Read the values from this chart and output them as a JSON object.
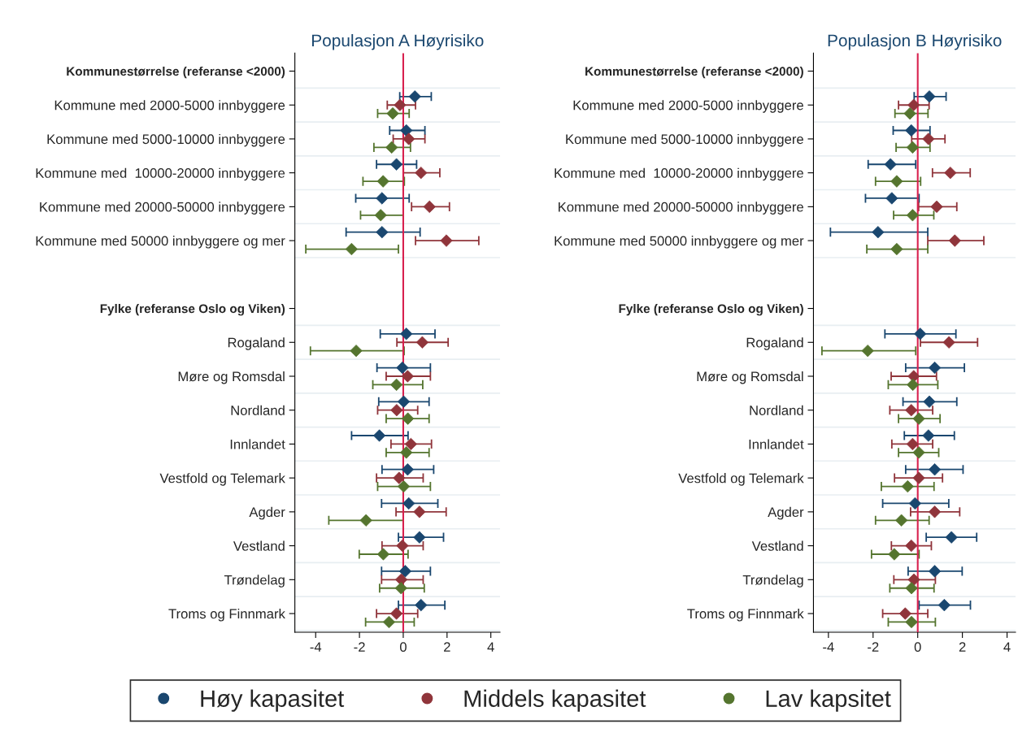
{
  "chart_data": [
    {
      "type": "scatter",
      "orientation": "horizontal",
      "title": "Populasjon A Høyrisiko",
      "marker": "diamond",
      "grid": "y",
      "legend": "bottom",
      "categories": [
        "Kommunestørrelse (referanse <2000)",
        "Kommune med 2000-5000 innbyggere",
        "Kommune med 5000-10000 innbyggere",
        "Kommune med  10000-20000 innbyggere",
        "Kommune med 20000-50000 innbyggere",
        "Kommune med 50000 innbyggere og mer",
        null,
        "Fylke (referanse Oslo og Viken)",
        "Rogaland",
        "Møre og Romsdal",
        "Nordland",
        "Innlandet",
        "Vestfold og Telemark",
        "Agder",
        "Vestland",
        "Trøndelag",
        "Troms og Finnmark"
      ],
      "series": [
        {
          "name": "Høy kapasitet",
          "color": "#1a476f",
          "values": [
            null,
            0.53,
            0.14,
            -0.31,
            -0.97,
            -0.97,
            null,
            null,
            0.14,
            -0.04,
            0.02,
            -1.09,
            0.2,
            0.25,
            0.74,
            0.09,
            0.81
          ],
          "errors": [
            null,
            [
              -0.16,
              1.28
            ],
            [
              -0.62,
              0.99
            ],
            [
              -1.22,
              0.61
            ],
            [
              -2.17,
              0.27
            ],
            [
              -2.61,
              0.77
            ],
            null,
            null,
            [
              -1.05,
              1.45
            ],
            [
              -1.2,
              1.24
            ],
            [
              -1.12,
              1.18
            ],
            [
              -2.36,
              0.22
            ],
            [
              -0.97,
              1.39
            ],
            [
              -0.99,
              1.58
            ],
            [
              -0.22,
              1.84
            ],
            [
              -0.99,
              1.24
            ],
            [
              -0.22,
              1.9
            ]
          ]
        },
        {
          "name": "Middels kapasitet",
          "color": "#90353b",
          "values": [
            null,
            -0.15,
            0.25,
            0.81,
            1.2,
            1.97,
            null,
            null,
            0.87,
            0.2,
            -0.3,
            0.35,
            -0.19,
            0.74,
            -0.04,
            -0.09,
            -0.31
          ],
          "errors": [
            null,
            [
              -0.73,
              0.56
            ],
            [
              -0.46,
              0.99
            ],
            [
              0.01,
              1.67
            ],
            [
              0.38,
              2.11
            ],
            [
              0.56,
              3.45
            ],
            null,
            null,
            [
              -0.29,
              2.05
            ],
            [
              -0.78,
              1.24
            ],
            [
              -1.17,
              0.66
            ],
            [
              -0.56,
              1.29
            ],
            [
              -1.22,
              0.91
            ],
            [
              -0.33,
              1.96
            ],
            [
              -0.97,
              0.91
            ],
            [
              -0.99,
              0.91
            ],
            [
              -1.22,
              0.66
            ]
          ]
        },
        {
          "name": "Lav kapsitet",
          "color": "#55752f",
          "values": [
            null,
            -0.48,
            -0.53,
            -0.92,
            -1.03,
            -2.36,
            null,
            null,
            -2.15,
            -0.31,
            0.21,
            0.14,
            0.02,
            -1.7,
            -0.91,
            -0.1,
            -0.65
          ],
          "errors": [
            null,
            [
              -1.17,
              0.27
            ],
            [
              -1.34,
              0.33
            ],
            [
              -1.84,
              0.05
            ],
            [
              -1.95,
              0.0
            ],
            [
              -4.45,
              -0.22
            ],
            null,
            null,
            [
              -4.24,
              0.04
            ],
            [
              -1.39,
              0.89
            ],
            [
              -0.78,
              1.18
            ],
            [
              -0.78,
              1.18
            ],
            [
              -1.17,
              1.24
            ],
            [
              -3.4,
              0.0
            ],
            [
              -2.01,
              0.22
            ],
            [
              -1.08,
              0.96
            ],
            [
              -1.72,
              0.5
            ]
          ]
        }
      ],
      "xlim": [
        -4.95,
        4.42
      ],
      "xticks": [
        -4,
        -2,
        0,
        2,
        4
      ],
      "ref_lines": [
        {
          "axis": "x",
          "value": 0,
          "color": "#d8204e"
        }
      ]
    },
    {
      "type": "scatter",
      "orientation": "horizontal",
      "title": "Populasjon B Høyrisiko",
      "marker": "diamond",
      "grid": "y",
      "legend": "bottom",
      "categories": [
        "Kommunestørrelse (referanse <2000)",
        "Kommune med 2000-5000 innbyggere",
        "Kommune med 5000-10000 innbyggere",
        "Kommune med  10000-20000 innbyggere",
        "Kommune med 20000-50000 innbyggere",
        "Kommune med 50000 innbyggere og mer",
        null,
        "Fylke (referanse Oslo og Viken)",
        "Rogaland",
        "Møre og Romsdal",
        "Nordland",
        "Innlandet",
        "Vestfold og Telemark",
        "Agder",
        "Vestland",
        "Trøndelag",
        "Troms og Finnmark"
      ],
      "series": [
        {
          "name": "Høy kapasitet",
          "color": "#1a476f",
          "values": [
            null,
            0.52,
            -0.29,
            -1.22,
            -1.16,
            -1.78,
            null,
            null,
            0.11,
            0.76,
            0.52,
            0.48,
            0.76,
            -0.12,
            1.51,
            0.76,
            1.19
          ],
          "errors": [
            null,
            [
              -0.16,
              1.27
            ],
            [
              -1.1,
              0.55
            ],
            [
              -2.22,
              -0.09
            ],
            [
              -2.34,
              0.06
            ],
            [
              -3.91,
              0.45
            ],
            null,
            null,
            [
              -1.47,
              1.71
            ],
            [
              -0.54,
              2.09
            ],
            [
              -0.66,
              1.75
            ],
            [
              -0.6,
              1.64
            ],
            [
              -0.54,
              2.03
            ],
            [
              -1.57,
              1.39
            ],
            [
              0.38,
              2.64
            ],
            [
              -0.43,
              1.99
            ],
            [
              0.06,
              2.36
            ]
          ]
        },
        {
          "name": "Middels kapasitet",
          "color": "#90353b",
          "values": [
            null,
            -0.18,
            0.48,
            1.46,
            0.85,
            1.66,
            null,
            null,
            1.4,
            -0.18,
            -0.29,
            -0.23,
            0.05,
            0.76,
            -0.29,
            -0.17,
            -0.56
          ],
          "errors": [
            null,
            [
              -0.86,
              0.51
            ],
            [
              -0.27,
              1.22
            ],
            [
              0.66,
              2.35
            ],
            [
              0.04,
              1.75
            ],
            [
              0.45,
              2.96
            ],
            null,
            null,
            [
              0.12,
              2.68
            ],
            [
              -1.19,
              0.84
            ],
            [
              -1.25,
              0.67
            ],
            [
              -1.16,
              0.67
            ],
            [
              -1.04,
              1.11
            ],
            [
              -0.32,
              1.88
            ],
            [
              -1.18,
              0.61
            ],
            [
              -1.07,
              0.79
            ],
            [
              -1.57,
              0.45
            ]
          ]
        },
        {
          "name": "Lav kapsitet",
          "color": "#55752f",
          "values": [
            null,
            -0.35,
            -0.23,
            -0.94,
            -0.23,
            -0.94,
            null,
            null,
            -2.24,
            -0.22,
            0.05,
            0.05,
            -0.45,
            -0.73,
            -1.05,
            -0.28,
            -0.28
          ],
          "errors": [
            null,
            [
              -1.02,
              0.46
            ],
            [
              -0.97,
              0.55
            ],
            [
              -1.89,
              0.13
            ],
            [
              -1.08,
              0.72
            ],
            [
              -2.28,
              0.45
            ],
            null,
            null,
            [
              -4.29,
              -0.09
            ],
            [
              -1.32,
              0.9
            ],
            [
              -0.86,
              1.0
            ],
            [
              -0.86,
              0.94
            ],
            [
              -1.63,
              0.73
            ],
            [
              -1.89,
              0.51
            ],
            [
              -2.07,
              0.06
            ],
            [
              -1.25,
              0.73
            ],
            [
              -1.32,
              0.79
            ]
          ]
        }
      ],
      "xlim": [
        -4.67,
        4.38
      ],
      "xticks": [
        -4,
        -2,
        0,
        2,
        4
      ],
      "ref_lines": [
        {
          "axis": "x",
          "value": 0,
          "color": "#d8204e"
        }
      ]
    }
  ]
}
